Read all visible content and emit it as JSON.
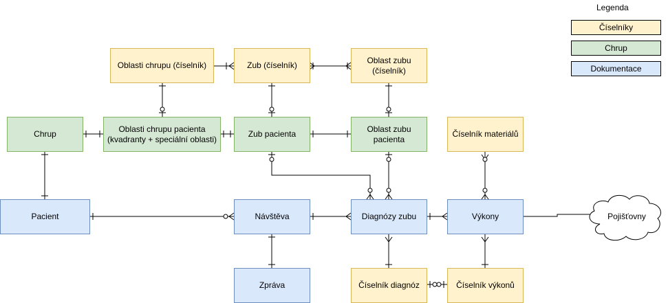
{
  "legend": {
    "title": "Legenda",
    "items": [
      {
        "label": "Číselníky",
        "color": "#fff2cc"
      },
      {
        "label": "Chrup",
        "color": "#d5e8d4"
      },
      {
        "label": "Dokumentace",
        "color": "#dae8fc"
      }
    ]
  },
  "entities": {
    "oblasti_chrupu_ciselnik": "Oblasti chrupu (číselník)",
    "zub_ciselnik": "Zub (číselník)",
    "oblast_zubu_ciselnik": "Oblast zubu\n(číselník)",
    "chrup": "Chrup",
    "oblasti_chrupu_pacienta": "Oblasti chrupu pacienta\n(kvadranty + speciální oblasti)",
    "zub_pacienta": "Zub pacienta",
    "oblast_zubu_pacienta": "Oblast zubu\npacienta",
    "ciselnik_materialu": "Číselník materiálů",
    "pacient": "Pacient",
    "navsteva": "Návštěva",
    "diagnozy_zubu": "Diagnózy zubu",
    "vykony": "Výkony",
    "pojistovny": "Pojišťovny",
    "zprava": "Zpráva",
    "ciselnik_diagnoz": "Číselník diagnóz",
    "ciselnik_vykonu": "Číselník výkonů"
  },
  "colors": {
    "ciselniky_fill": "#fff2cc",
    "ciselniky_stroke": "#d6b656",
    "chrup_fill": "#d5e8d4",
    "chrup_stroke": "#82b366",
    "dokumentace_fill": "#dae8fc",
    "dokumentace_stroke": "#6c8ebf",
    "line": "#000000"
  }
}
